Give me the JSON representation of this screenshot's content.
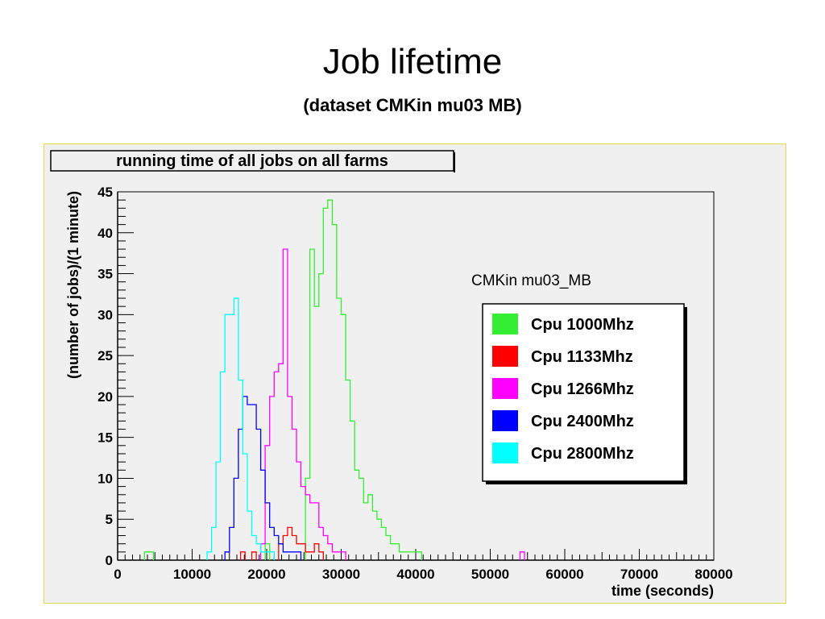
{
  "slide": {
    "title": "Job lifetime",
    "subtitle": "(dataset CMKin mu03 MB)"
  },
  "chart_data": {
    "type": "line",
    "title": "running time of all jobs on all farms",
    "annotation": "CMKin mu03_MB",
    "xlabel": "time (seconds)",
    "ylabel": "(number of jobs)/(1 minute)",
    "xlim": [
      0,
      80000
    ],
    "ylim": [
      0,
      45
    ],
    "xticks": [
      "0",
      "10000",
      "20000",
      "30000",
      "40000",
      "50000",
      "60000",
      "70000",
      "80000"
    ],
    "yticks": [
      "0",
      "5",
      "10",
      "15",
      "20",
      "25",
      "30",
      "35",
      "40",
      "45"
    ],
    "grid": false,
    "legend_position": "right",
    "series": [
      {
        "name": "Cpu 1000Mhz",
        "color": "#33ee33",
        "x": [
          3600,
          4200,
          19800,
          25200,
          25800,
          26400,
          27000,
          27600,
          28200,
          28800,
          29400,
          30000,
          30600,
          31200,
          31800,
          32400,
          33000,
          33600,
          34200,
          34800,
          35400,
          36000,
          36600,
          37200,
          37800,
          38400,
          39000,
          39600,
          40200
        ],
        "values": [
          1,
          1,
          2,
          10,
          38,
          31,
          35,
          43,
          44,
          41,
          32,
          30,
          22,
          17,
          11,
          10,
          7,
          8,
          6,
          5,
          4,
          3,
          2,
          2,
          1,
          1,
          1,
          1,
          1
        ]
      },
      {
        "name": "Cpu 1133Mhz",
        "color": "#ff0000",
        "x": [
          16500,
          18000,
          21600,
          22200,
          22800,
          23400,
          24000,
          24600,
          25200,
          25800,
          26400,
          27000
        ],
        "values": [
          1,
          1,
          2,
          3,
          4,
          3,
          2,
          2,
          1,
          1,
          2,
          1
        ]
      },
      {
        "name": "Cpu 1266Mhz",
        "color": "#ff00ff",
        "x": [
          19200,
          19800,
          20400,
          21000,
          21600,
          22200,
          22800,
          23400,
          24000,
          24600,
          25200,
          25800,
          26400,
          27000,
          27600,
          28200,
          28800,
          29400,
          30000,
          54000
        ],
        "values": [
          2,
          14,
          20,
          23,
          24,
          38,
          20,
          16,
          12,
          9,
          8,
          7,
          7,
          4,
          3,
          2,
          1,
          1,
          1,
          1
        ]
      },
      {
        "name": "Cpu 2400Mhz",
        "color": "#0000ff",
        "x": [
          14400,
          15000,
          15600,
          16200,
          16800,
          17400,
          18000,
          18600,
          19200,
          19800,
          20400,
          21000,
          21600,
          22200,
          22800,
          23400,
          24000
        ],
        "values": [
          1,
          4,
          10,
          16,
          20,
          19,
          19,
          16,
          11,
          7,
          4,
          3,
          2,
          1,
          1,
          1,
          1
        ]
      },
      {
        "name": "Cpu 2800Mhz",
        "color": "#00ffff",
        "x": [
          12000,
          12600,
          13200,
          13800,
          14400,
          15000,
          15600,
          16200,
          16800,
          17400,
          18000,
          18600,
          19200,
          19800,
          20400
        ],
        "values": [
          1,
          4,
          12,
          23,
          30,
          30,
          32,
          22,
          13,
          6,
          3,
          2,
          1,
          1,
          1
        ]
      }
    ]
  }
}
